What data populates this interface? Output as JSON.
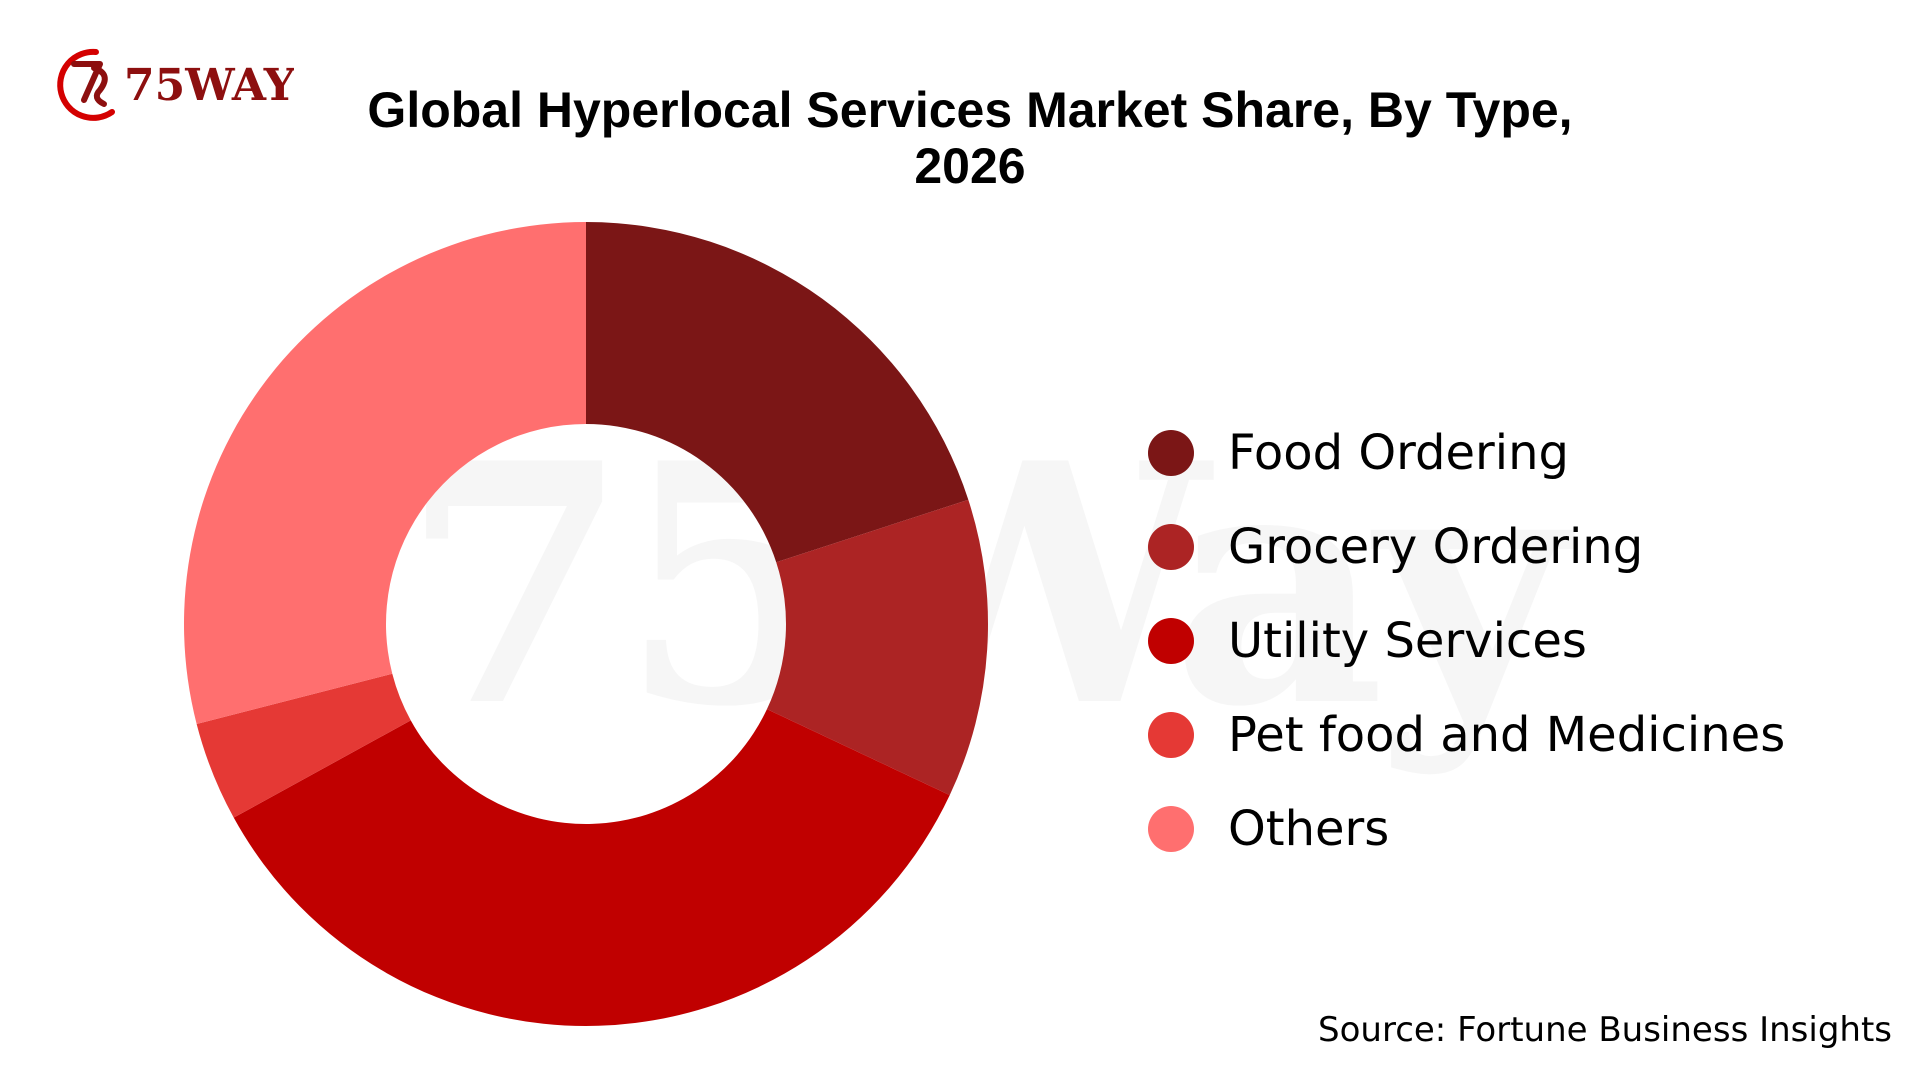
{
  "logo": {
    "text": "75WAY",
    "colors": {
      "dark": "#8d0f0f",
      "accent": "#d40000"
    }
  },
  "watermark": {
    "text": "75Way"
  },
  "chart_data": {
    "type": "pie",
    "variant": "donut",
    "title": "Global Hyperlocal Services Market Share, By Type, 2026",
    "categories": [
      "Food Ordering",
      "Grocery Ordering",
      "Utility Services",
      "Pet food and Medicines",
      "Others"
    ],
    "values": [
      20,
      12,
      35,
      4,
      29
    ],
    "unit": "%",
    "colors": [
      "#7b1616",
      "#ac2424",
      "#c00000",
      "#e53935",
      "#ff6f6f"
    ],
    "legend_position": "right",
    "source": "Source: Fortune Business Insights"
  }
}
